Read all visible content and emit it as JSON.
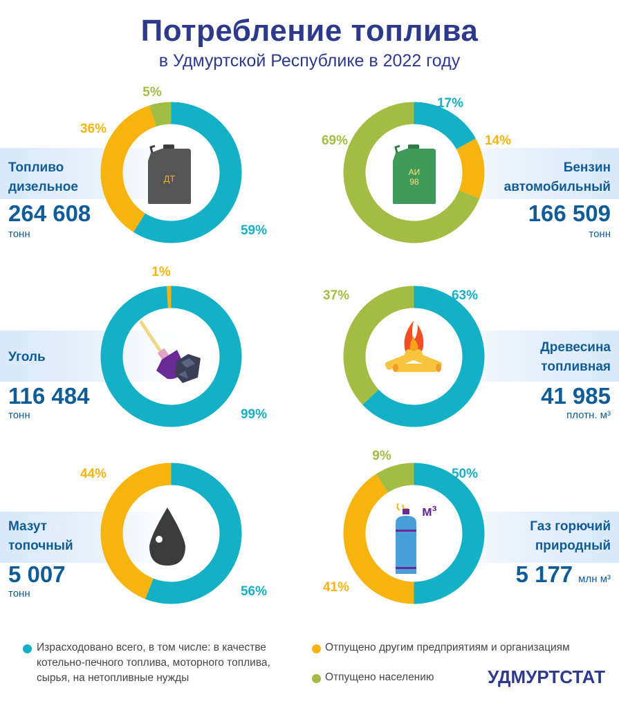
{
  "title": "Потребление топлива",
  "subtitle": "в Удмуртской Республике в 2022 году",
  "colors": {
    "teal": "#13b0c6",
    "orange": "#f7b40e",
    "green": "#a2bc44"
  },
  "fuels": [
    {
      "label": "Топливо\nдизельное",
      "value": "264 608",
      "unit": "тонн",
      "icon": "diesel-canister-icon",
      "icon_text": "ДТ"
    },
    {
      "label": "Бензин\nавтомобильный",
      "value": "166 509",
      "unit": "тонн",
      "icon": "gasoline-canister-icon",
      "icon_text_1": "АИ",
      "icon_text_2": "98"
    },
    {
      "label": "Уголь",
      "value": "116 484",
      "unit": "тонн",
      "icon": "coal-shovel-icon"
    },
    {
      "label": "Древесина\nтопливная",
      "value": "41 985",
      "unit": "плотн. м³",
      "icon": "firewood-icon"
    },
    {
      "label": "Мазут\nтопочный",
      "value": "5 007",
      "unit": "тонн",
      "icon": "oil-drop-icon"
    },
    {
      "label": "Газ горючий\nприродный",
      "value": "5 177",
      "unit": "млн  м³",
      "icon": "gas-cylinder-icon",
      "icon_text": "м³"
    }
  ],
  "chart_data": [
    {
      "type": "pie",
      "title": "Топливо дизельное",
      "slices": [
        {
          "series": "Израсходовано всего",
          "value": 59,
          "label": "59%"
        },
        {
          "series": "Отпущено другим предприятиям и организациям",
          "value": 36,
          "label": "36%"
        },
        {
          "series": "Отпущено населению",
          "value": 5,
          "label": "5%"
        }
      ]
    },
    {
      "type": "pie",
      "title": "Бензин автомобильный",
      "slices": [
        {
          "series": "Израсходовано всего",
          "value": 17,
          "label": "17%"
        },
        {
          "series": "Отпущено другим предприятиям и организациям",
          "value": 14,
          "label": "14%"
        },
        {
          "series": "Отпущено населению",
          "value": 69,
          "label": "69%"
        }
      ]
    },
    {
      "type": "pie",
      "title": "Уголь",
      "slices": [
        {
          "series": "Израсходовано всего",
          "value": 99,
          "label": "99%"
        },
        {
          "series": "Отпущено другим предприятиям и организациям",
          "value": 1,
          "label": "1%"
        }
      ]
    },
    {
      "type": "pie",
      "title": "Древесина топливная",
      "slices": [
        {
          "series": "Израсходовано всего",
          "value": 63,
          "label": "63%"
        },
        {
          "series": "Отпущено населению",
          "value": 37,
          "label": "37%"
        }
      ]
    },
    {
      "type": "pie",
      "title": "Мазут топочный",
      "slices": [
        {
          "series": "Израсходовано всего",
          "value": 56,
          "label": "56%"
        },
        {
          "series": "Отпущено другим предприятиям и организациям",
          "value": 44,
          "label": "44%"
        }
      ]
    },
    {
      "type": "pie",
      "title": "Газ горючий природный",
      "slices": [
        {
          "series": "Израсходовано всего",
          "value": 50,
          "label": "50%"
        },
        {
          "series": "Отпущено другим предприятиям и организациям",
          "value": 41,
          "label": "41%"
        },
        {
          "series": "Отпущено населению",
          "value": 9,
          "label": "9%"
        }
      ]
    }
  ],
  "legend": [
    {
      "text": "Израсходовано всего, в том числе: в качестве\nкотельно-печного топлива, моторного топлива,\nсырья, на нетопливные нужды",
      "color": "#13b0c6"
    },
    {
      "text": "Отпущено другим предприятиям и организациям",
      "color": "#f7b40e"
    },
    {
      "text": "Отпущено населению",
      "color": "#a2bc44"
    }
  ],
  "brand": "УДМУРТСТАТ"
}
